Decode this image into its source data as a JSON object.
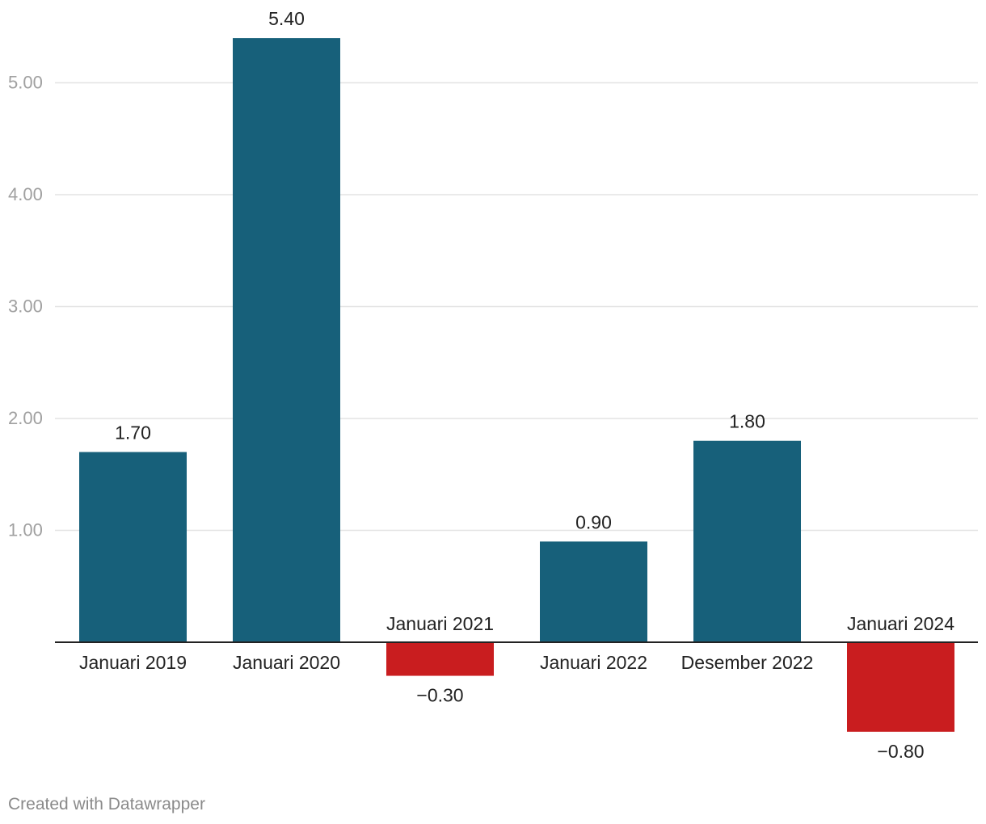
{
  "chart_data": {
    "type": "bar",
    "categories": [
      "Januari 2019",
      "Januari 2020",
      "Januari 2021",
      "Januari 2022",
      "Desember 2022",
      "Januari 2024"
    ],
    "values": [
      1.7,
      5.4,
      -0.3,
      0.9,
      1.8,
      -0.8
    ],
    "value_labels": [
      "1.70",
      "5.40",
      "−0.30",
      "0.90",
      "1.80",
      "−0.80"
    ],
    "yticks": [
      1,
      2,
      3,
      4,
      5
    ],
    "ytick_labels": [
      "1.00",
      "2.00",
      "3.00",
      "4.00",
      "5.00"
    ],
    "ylim": [
      -1.0,
      5.5
    ],
    "grid": true,
    "colors": {
      "positive": "#17607a",
      "negative": "#c91d1f",
      "grid": "#e3e3e3",
      "axis": "#222222"
    }
  },
  "footer": {
    "credit": "Created with Datawrapper"
  }
}
